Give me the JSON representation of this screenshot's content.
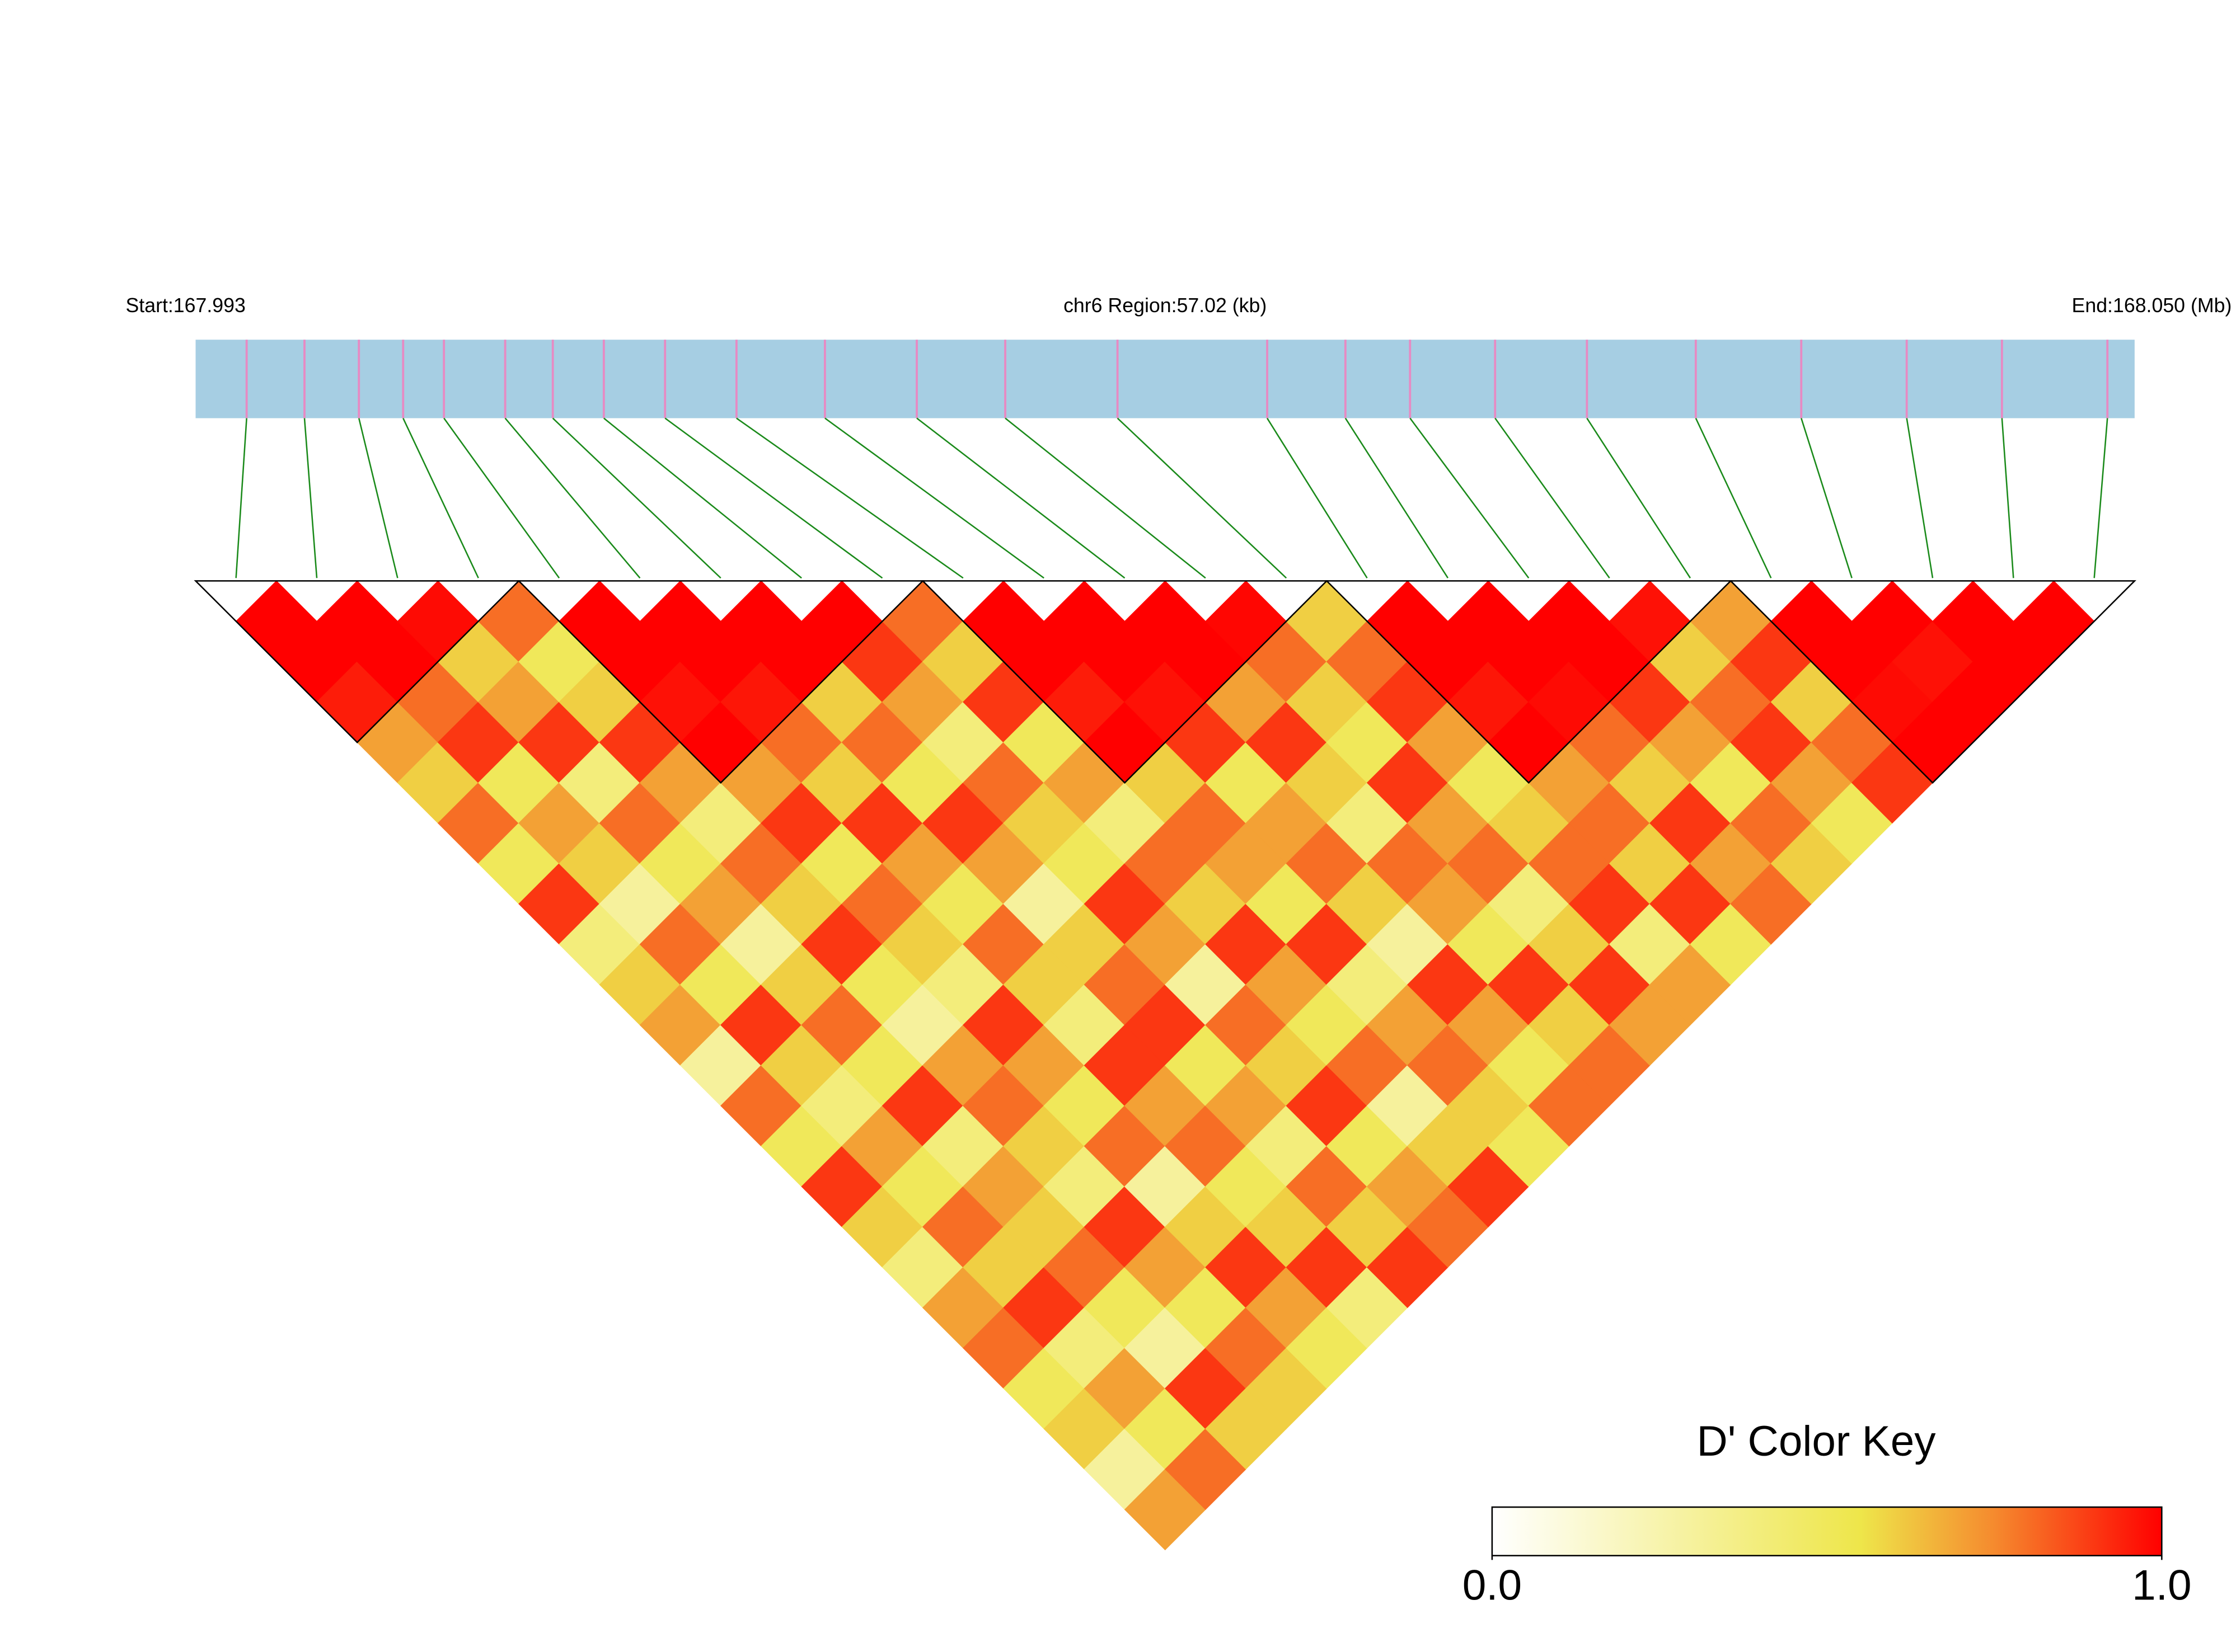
{
  "chart_data": {
    "type": "heatmap",
    "chrom_label": "chr6 Region:57.02 (kb)",
    "start_label": "Start:167.993",
    "end_label": "End:168.050 (Mb)",
    "xlim": [
      167.993,
      168.05
    ],
    "snp_positions": [
      167.9945,
      167.9962,
      167.9978,
      167.9991,
      168.0003,
      168.0021,
      168.0035,
      168.005,
      168.0068,
      168.0089,
      168.0115,
      168.0142,
      168.0168,
      168.0201,
      168.0245,
      168.0268,
      168.0287,
      168.0312,
      168.0339,
      168.0371,
      168.0402,
      168.0433,
      168.0461,
      168.0492
    ],
    "dprime": [
      [
        1,
        1,
        0.95,
        0.7,
        0.6,
        0.8,
        0.5,
        0.9,
        0.4,
        0.6,
        0.7,
        0.3,
        0.8,
        0.5,
        0.9,
        0.6,
        0.4,
        0.7,
        0.8,
        0.5,
        0.6,
        0.3,
        0.7
      ],
      [
        1,
        1,
        0.8,
        0.9,
        0.5,
        0.7,
        0.6,
        0.3,
        0.8,
        0.5,
        0.9,
        0.6,
        0.4,
        0.7,
        0.5,
        0.8,
        0.6,
        0.9,
        0.4,
        0.7,
        0.5,
        0.8
      ],
      [
        0.98,
        0.6,
        0.7,
        0.9,
        0.4,
        0.8,
        0.5,
        0.7,
        0.3,
        0.6,
        0.8,
        0.5,
        0.9,
        0.4,
        0.7,
        0.6,
        0.8,
        0.5,
        0.3,
        0.9,
        0.6
      ],
      [
        0.8,
        0.5,
        0.6,
        0.9,
        0.7,
        0.4,
        0.8,
        0.6,
        0.9,
        0.5,
        0.3,
        0.7,
        0.8,
        0.6,
        0.4,
        0.9,
        0.7,
        0.5,
        0.8,
        0.6
      ],
      [
        1,
        1,
        0.97,
        1,
        0.7,
        0.9,
        0.5,
        0.8,
        0.6,
        0.4,
        0.9,
        0.7,
        0.5,
        0.8,
        0.3,
        0.6,
        0.9,
        0.7,
        0.5
      ],
      [
        1,
        1,
        0.96,
        0.8,
        0.6,
        0.9,
        0.7,
        0.5,
        0.8,
        0.6,
        0.4,
        0.9,
        0.7,
        0.8,
        0.5,
        0.6,
        0.9,
        0.4
      ],
      [
        1,
        1,
        0.6,
        0.8,
        0.5,
        0.9,
        0.7,
        0.3,
        0.6,
        0.8,
        0.9,
        0.5,
        0.7,
        0.4,
        0.8,
        0.6,
        0.9
      ],
      [
        1,
        0.9,
        0.7,
        0.4,
        0.8,
        0.6,
        0.5,
        0.9,
        0.7,
        0.3,
        0.8,
        0.6,
        0.9,
        0.5,
        0.7,
        0.8
      ],
      [
        0.8,
        0.6,
        0.9,
        0.5,
        0.7,
        0.4,
        0.8,
        0.6,
        0.9,
        0.7,
        0.5,
        0.8,
        0.3,
        0.6,
        0.9
      ],
      [
        1,
        1,
        0.95,
        1,
        0.6,
        0.8,
        0.7,
        0.5,
        0.9,
        0.4,
        0.7,
        0.8,
        0.6,
        0.5
      ],
      [
        1,
        1,
        0.97,
        0.9,
        0.5,
        0.7,
        0.8,
        0.6,
        0.3,
        0.9,
        0.7,
        0.5,
        0.8
      ],
      [
        1,
        1,
        0.7,
        0.9,
        0.6,
        0.4,
        0.8,
        0.7,
        0.5,
        0.9,
        0.6,
        0.8
      ],
      [
        0.99,
        0.8,
        0.6,
        0.5,
        0.9,
        0.7,
        0.8,
        0.4,
        0.6,
        0.9,
        0.7
      ],
      [
        0.6,
        0.8,
        0.9,
        0.7,
        0.5,
        0.6,
        0.8,
        0.9,
        0.4,
        0.7
      ],
      [
        1,
        1,
        0.96,
        1,
        0.7,
        0.8,
        0.6,
        0.9,
        0.5
      ],
      [
        1,
        1,
        0.98,
        0.8,
        0.6,
        0.9,
        0.7,
        0.8
      ],
      [
        1,
        1,
        0.9,
        0.7,
        0.5,
        0.8,
        0.6
      ],
      [
        0.97,
        0.6,
        0.8,
        0.9,
        0.7,
        0.5
      ],
      [
        0.7,
        0.9,
        0.6,
        0.8,
        0.9
      ],
      [
        1,
        1,
        0.98,
        1
      ],
      [
        1,
        0.97,
        1
      ],
      [
        1,
        1
      ],
      [
        1
      ]
    ],
    "blocks": [
      [
        0,
        3
      ],
      [
        4,
        8
      ],
      [
        9,
        13
      ],
      [
        14,
        18
      ],
      [
        19,
        23
      ]
    ],
    "colorscale": [
      [
        0,
        "#ffffff"
      ],
      [
        0.55,
        "#eee64a"
      ],
      [
        0.75,
        "#f58a2e"
      ],
      [
        1,
        "#ff0000"
      ]
    ],
    "colorbar_title": "D' Color Key",
    "colorbar_lim": [
      0,
      1
    ],
    "colorbar_ticks": [
      {
        "value": 0,
        "label": "0.0"
      },
      {
        "value": 1,
        "label": "1.0"
      }
    ],
    "region_color": "#a6cee3",
    "snp_color": "#e78ac3",
    "link_color": "#1a8a1a"
  }
}
